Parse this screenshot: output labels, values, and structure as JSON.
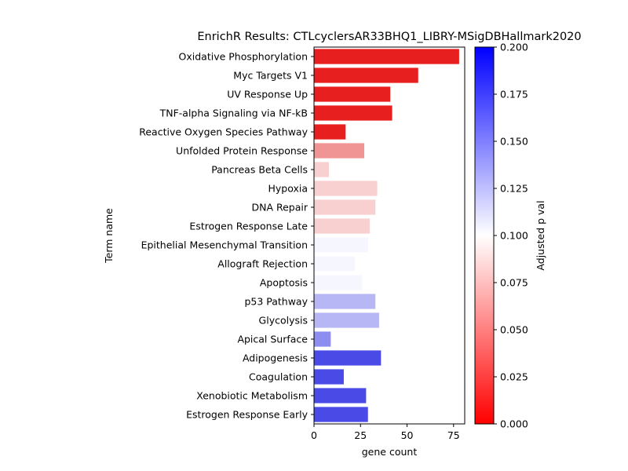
{
  "chart_data": {
    "type": "bar",
    "orientation": "horizontal",
    "title": "EnrichR Results: CTLcyclersAR33BHQ1_LIBRY-MSigDBHallmark2020",
    "xlabel": "gene count",
    "ylabel": "Term name",
    "xlim": [
      0,
      81
    ],
    "xticks": [
      "0",
      "25",
      "50",
      "75"
    ],
    "xtick_values": [
      0,
      25,
      50,
      75
    ],
    "grid": false,
    "legend": "none",
    "categories": [
      "Oxidative Phosphorylation",
      "Myc Targets V1",
      "UV Response Up",
      "TNF-alpha Signaling via NF-kB",
      "Reactive Oxygen Species Pathway",
      "Unfolded Protein Response",
      "Pancreas Beta Cells",
      "Hypoxia",
      "DNA Repair",
      "Estrogen Response Late",
      "Epithelial Mesenchymal Transition",
      "Allograft Rejection",
      "Apoptosis",
      "p53 Pathway",
      "Glycolysis",
      "Apical Surface",
      "Adipogenesis",
      "Coagulation",
      "Xenobiotic Metabolism",
      "Estrogen Response Early"
    ],
    "values": [
      78,
      56,
      41,
      42,
      17,
      27,
      8,
      34,
      33,
      30,
      29,
      22,
      26,
      33,
      35,
      9,
      36,
      16,
      28,
      29
    ],
    "colors": [
      "#e81f1f",
      "#e81f1f",
      "#e81f1f",
      "#e81f1f",
      "#e81f1f",
      "#f09494",
      "#f9d0d0",
      "#f9d0d0",
      "#f9d0d0",
      "#f9d0d0",
      "#f6f6ff",
      "#f6f6ff",
      "#f6f6ff",
      "#b7b7f5",
      "#b7b7f5",
      "#8d8df0",
      "#4a4ae7",
      "#4a4ae7",
      "#4a4ae7",
      "#4a4ae7"
    ],
    "colorbar": {
      "label": "Adjusted p val",
      "range": [
        0,
        0.2
      ],
      "ticks": [
        "0.000",
        "0.025",
        "0.050",
        "0.075",
        "0.100",
        "0.125",
        "0.150",
        "0.175",
        "0.200"
      ],
      "tick_values": [
        0,
        0.025,
        0.05,
        0.075,
        0.1,
        0.125,
        0.15,
        0.175,
        0.2
      ],
      "colormap": [
        "#ff0000",
        "#ffffff",
        "#0000ff"
      ]
    }
  }
}
